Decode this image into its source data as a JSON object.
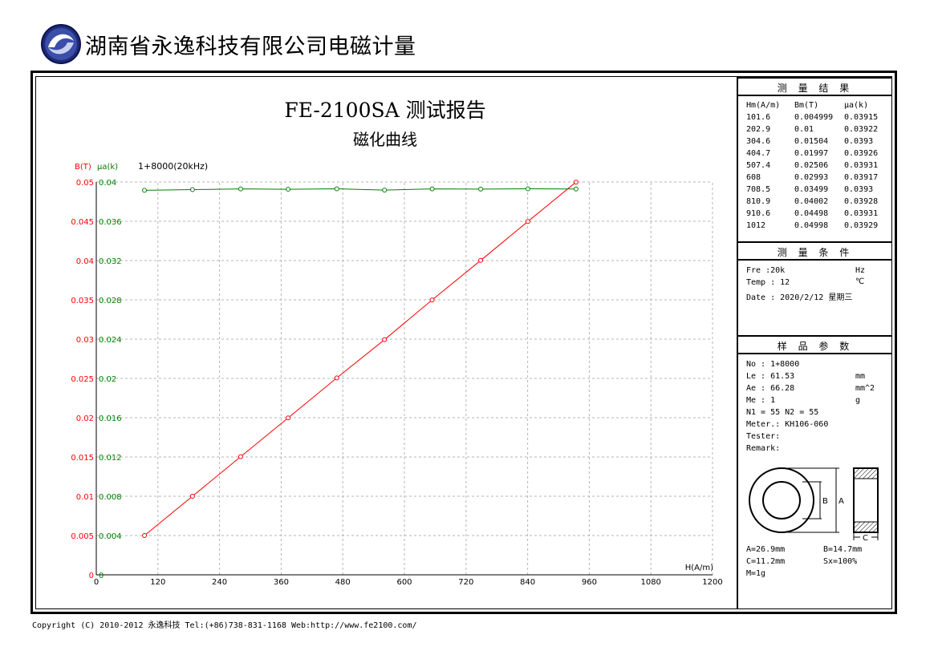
{
  "header": {
    "company": "湖南省永逸科技有限公司电磁计量"
  },
  "report": {
    "title": "FE-2100SA 测试报告",
    "subtitle": "磁化曲线"
  },
  "chart_data": {
    "type": "line",
    "sample_label": "1+8000(20kHz)",
    "xlabel": "H(A/m)",
    "ylabel_left": "B(T)",
    "ylabel_right": "μa(k)",
    "xlim": [
      0,
      1300
    ],
    "ylim_left": [
      0,
      0.05
    ],
    "ylim_right": [
      0,
      0.04
    ],
    "x_ticks": [
      "0",
      "120",
      "240",
      "360",
      "480",
      "600",
      "720",
      "840",
      "960",
      "1080",
      "1200"
    ],
    "y_ticks_left": [
      "0",
      "0.005",
      "0.01",
      "0.015",
      "0.02",
      "0.025",
      "0.03",
      "0.035",
      "0.04",
      "0.045",
      "0.05"
    ],
    "y_ticks_right": [
      "0",
      "0.004",
      "0.008",
      "0.012",
      "0.016",
      "0.02",
      "0.024",
      "0.028",
      "0.032",
      "0.036",
      "0.04"
    ],
    "grid": true,
    "x": [
      101.6,
      202.9,
      304.6,
      404.7,
      507.4,
      608,
      708.5,
      810.9,
      910.6,
      1012
    ],
    "series": [
      {
        "axis": "left",
        "color": "#ff0000",
        "values": [
          0.004999,
          0.01,
          0.01504,
          0.01997,
          0.02506,
          0.02993,
          0.03499,
          0.04002,
          0.04498,
          0.04998
        ]
      },
      {
        "axis": "right",
        "color": "#008000",
        "values": [
          0.03915,
          0.03922,
          0.0393,
          0.03926,
          0.03931,
          0.03917,
          0.0393,
          0.03928,
          0.03931,
          0.03929
        ]
      }
    ]
  },
  "results": {
    "title": "测 量 结 果",
    "headers": [
      "Hm(A/m)",
      "Bm(T)",
      "μa(k)"
    ],
    "rows": [
      [
        "101.6",
        "0.004999",
        "0.03915"
      ],
      [
        "202.9",
        "0.01",
        "0.03922"
      ],
      [
        "304.6",
        "0.01504",
        "0.0393"
      ],
      [
        "404.7",
        "0.01997",
        "0.03926"
      ],
      [
        "507.4",
        "0.02506",
        "0.03931"
      ],
      [
        "608",
        "0.02993",
        "0.03917"
      ],
      [
        "708.5",
        "0.03499",
        "0.0393"
      ],
      [
        "810.9",
        "0.04002",
        "0.03928"
      ],
      [
        "910.6",
        "0.04498",
        "0.03931"
      ],
      [
        "1012",
        "0.04998",
        "0.03929"
      ]
    ]
  },
  "conditions": {
    "title": "测 量 条 件",
    "freq": "Fre  :20k",
    "freq_unit": "Hz",
    "temp": "Temp : 12",
    "temp_unit": "℃",
    "date": "Date : 2020/2/12 星期三"
  },
  "sample": {
    "title": "样 品 参 数",
    "no": "No : 1+8000",
    "le": "Le : 61.53",
    "le_unit": "mm",
    "ae": "Ae : 66.28",
    "ae_unit": "mm^2",
    "me": "Me : 1",
    "me_unit": "g",
    "n": "N1 = 55   N2 = 55",
    "meter": "Meter.: KH106-060",
    "tester": "Tester:",
    "remark": "Remark:",
    "diagram": {
      "label_b": "B",
      "label_a": "A",
      "label_c": "C"
    },
    "dims": {
      "a": "A=26.9mm",
      "b": "B=14.7mm",
      "c": "C=11.2mm",
      "sx": "Sx=100%",
      "m": "M=1g"
    }
  },
  "footer": {
    "text": "Copyright (C) 2010-2012 永逸科技  Tel:(+86)738-831-1168  Web:http://www.fe2100.com/"
  }
}
